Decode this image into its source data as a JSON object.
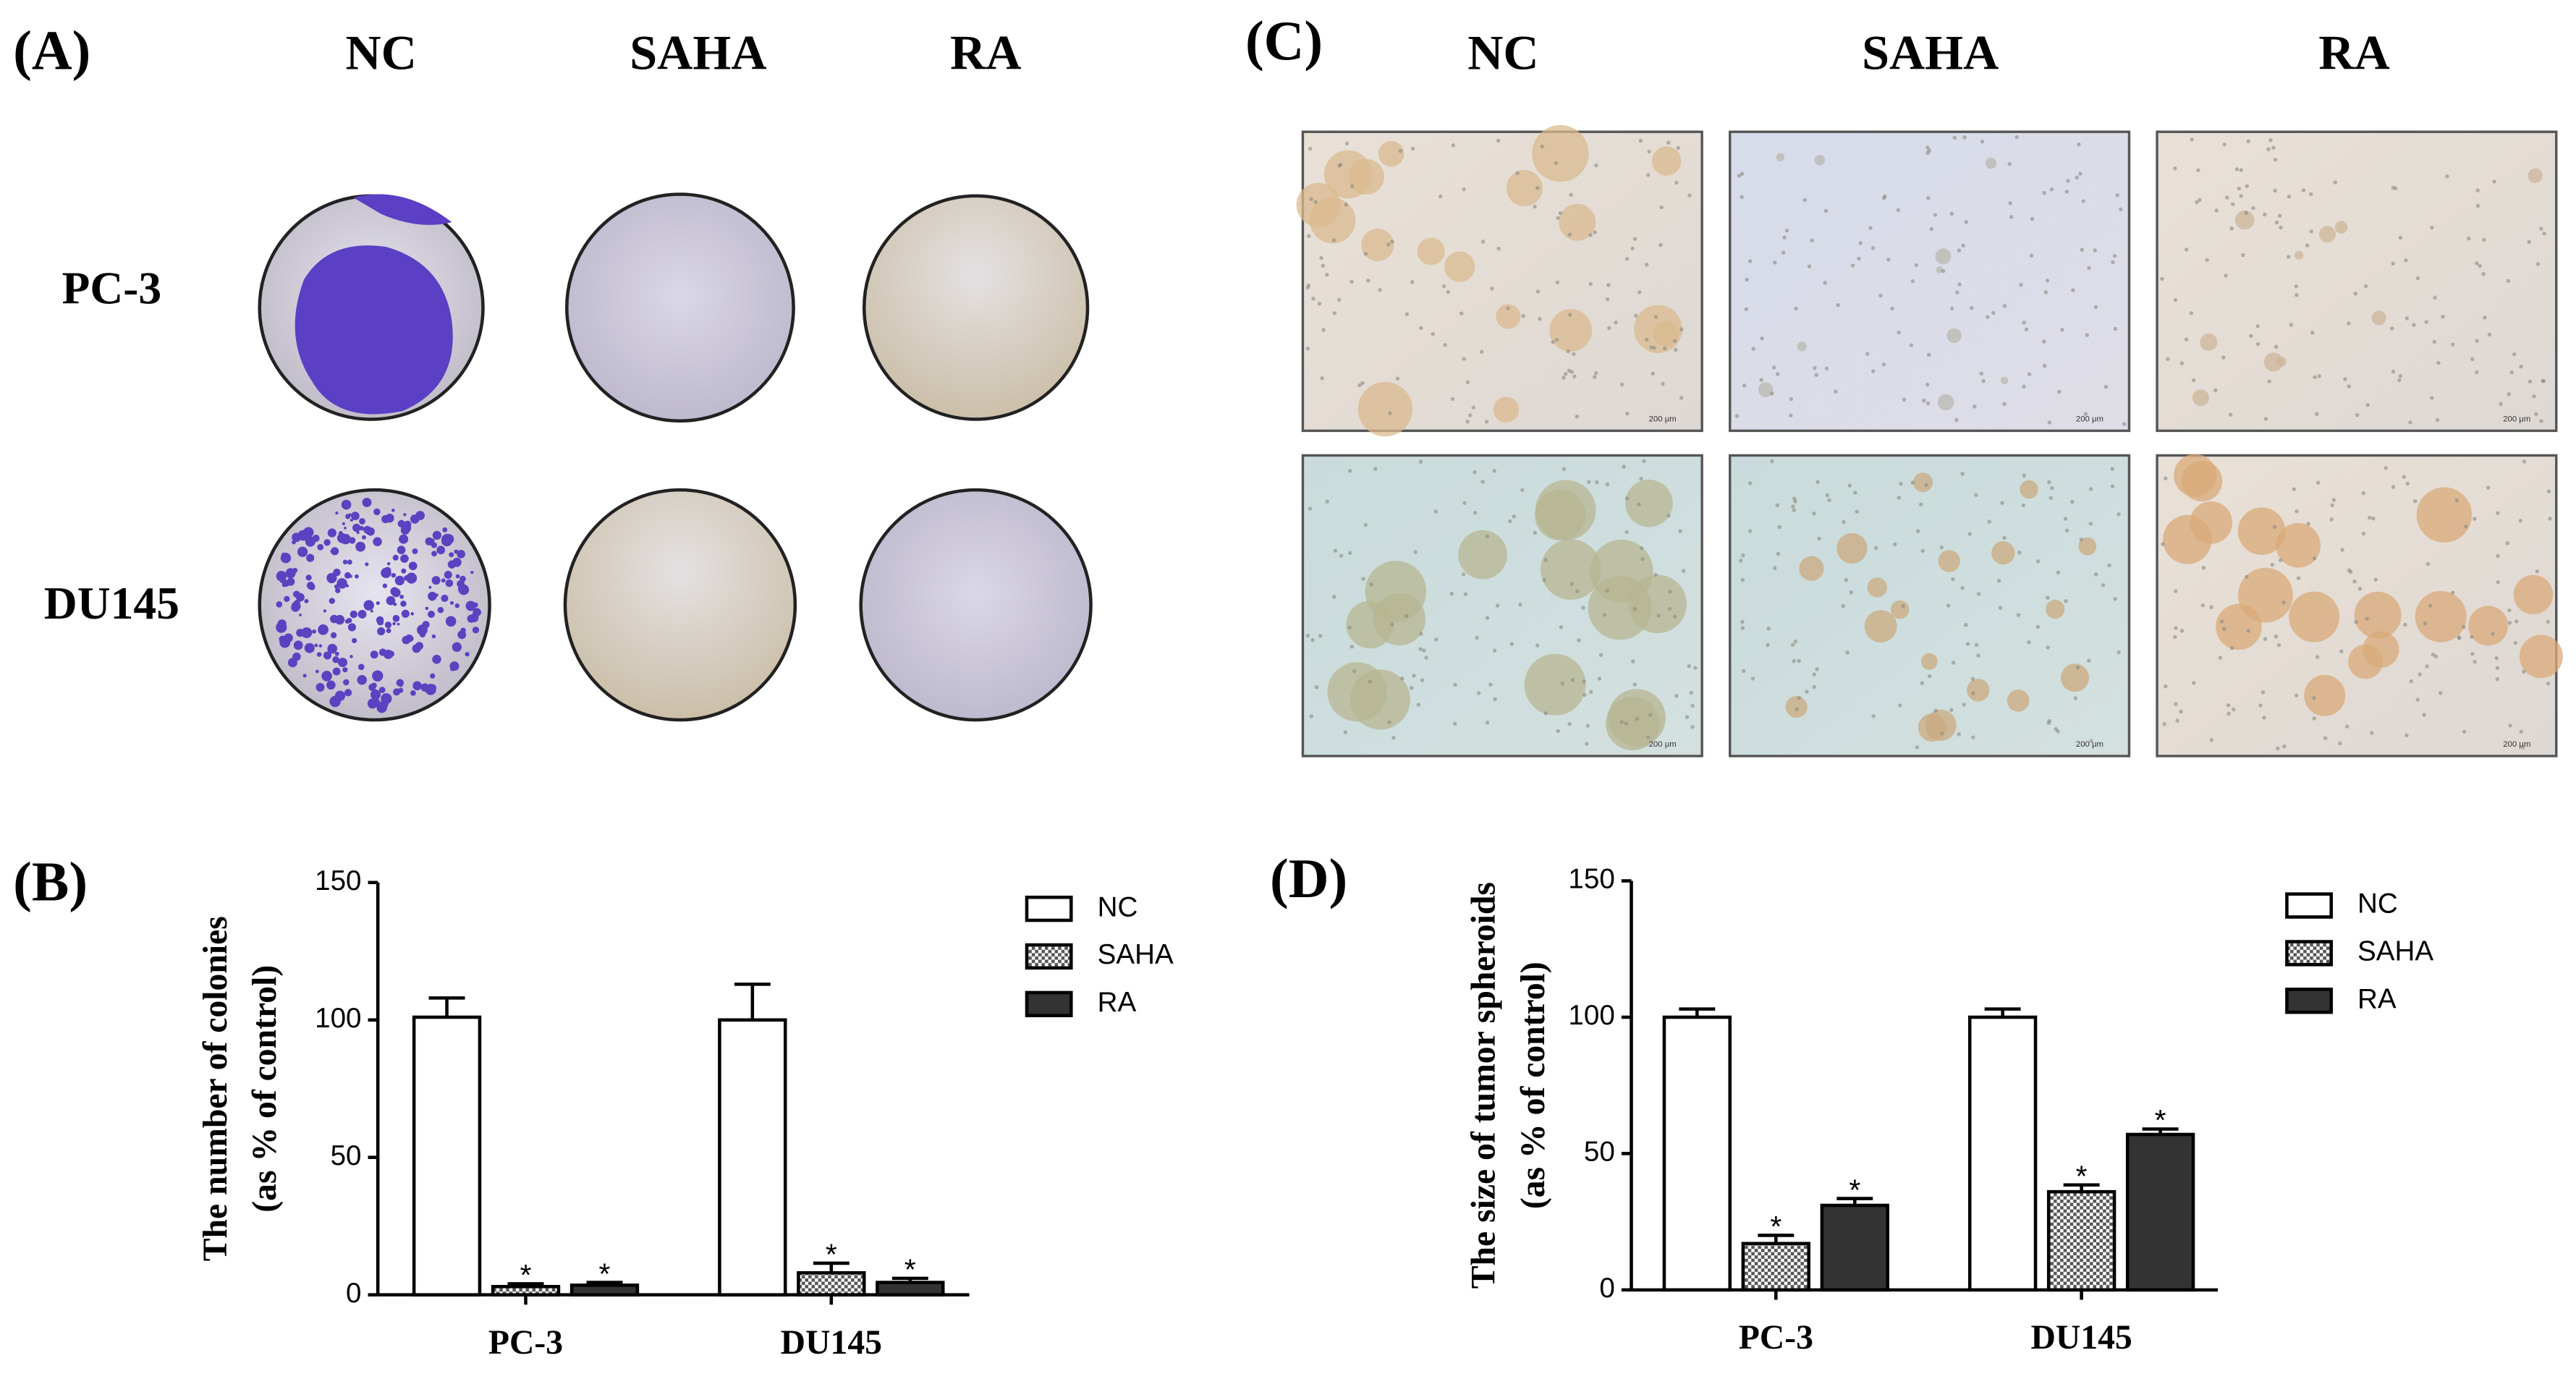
{
  "panel_labels": [
    "(A)",
    "(B)",
    "(C)",
    "(D)"
  ],
  "colony_assay": {
    "columns": [
      "NC",
      "SAHA",
      "RA"
    ],
    "rows": [
      "PC-3",
      "DU145"
    ]
  },
  "spheroid_images": {
    "columns": [
      "NC",
      "SAHA",
      "RA"
    ],
    "scale_bar": "200 μm"
  },
  "chart_data": [
    {
      "type": "bar",
      "ylabel": [
        "The number of colonies",
        "(as % of control)"
      ],
      "categories": [
        "PC-3",
        "DU145"
      ],
      "ylim": [
        0,
        150
      ],
      "yticks": [
        0,
        50,
        100,
        150
      ],
      "legend": "right",
      "series": [
        {
          "name": "NC",
          "color": "#ffffff",
          "values": [
            101,
            100
          ],
          "errors": [
            7,
            13
          ]
        },
        {
          "name": "SAHA",
          "color": "#555555",
          "fill": "checker",
          "values": [
            3,
            8
          ],
          "errors": [
            1,
            3.5
          ],
          "labels": [
            "*",
            "*"
          ]
        },
        {
          "name": "RA",
          "color": "#333333",
          "values": [
            3.5,
            4.5
          ],
          "errors": [
            1,
            1.5
          ],
          "labels": [
            "*",
            "*"
          ]
        }
      ]
    },
    {
      "type": "bar",
      "ylabel": [
        "The size of tumor spheroids",
        "(as % of control)"
      ],
      "categories": [
        "PC-3",
        "DU145"
      ],
      "ylim": [
        0,
        150
      ],
      "yticks": [
        0,
        50,
        100,
        150
      ],
      "legend": "right",
      "series": [
        {
          "name": "NC",
          "color": "#ffffff",
          "values": [
            100,
            100
          ],
          "errors": [
            3,
            3
          ]
        },
        {
          "name": "SAHA",
          "color": "#555555",
          "fill": "checker",
          "values": [
            17,
            36
          ],
          "errors": [
            3,
            2.5
          ],
          "labels": [
            "*",
            "*"
          ]
        },
        {
          "name": "RA",
          "color": "#333333",
          "values": [
            31,
            57
          ],
          "errors": [
            2.5,
            2
          ],
          "labels": [
            "*",
            "*"
          ]
        }
      ]
    }
  ]
}
